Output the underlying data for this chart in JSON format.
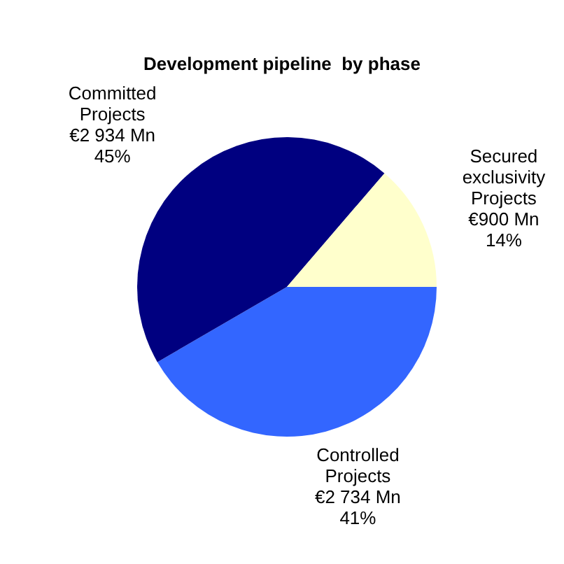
{
  "chart_data": {
    "type": "pie",
    "title": "Development pipeline  by phase",
    "categories": [
      "Controlled Projects",
      "Committed Projects",
      "Secured exclusivity Projects"
    ],
    "values": [
      2734,
      2934,
      900
    ],
    "colors": [
      "#3366ff",
      "#000080",
      "#ffffcc"
    ],
    "value_labels": [
      "€2 734 Mn\n41%",
      "€2 934 Mn\n45%",
      "€900 Mn\n14%"
    ]
  }
}
